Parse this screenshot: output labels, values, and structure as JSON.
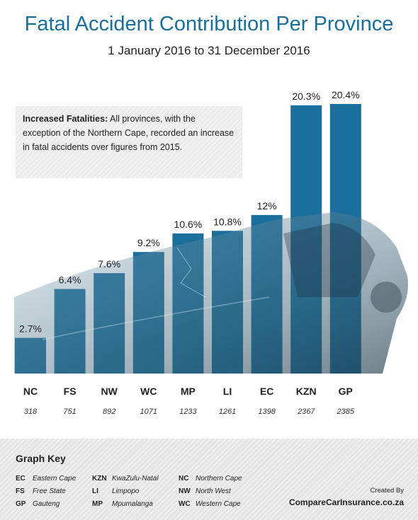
{
  "title": "Fatal Accident Contribution Per Province",
  "subtitle": "1 January 2016 to 31 December 2016",
  "note": {
    "bold": "Increased Fatalities:",
    "text": " All provinces, with the exception of the Northern Cape, recorded an increase in fatal accidents over figures from 2015."
  },
  "chart_data": {
    "type": "bar",
    "categories": [
      "NC",
      "FS",
      "NW",
      "WC",
      "MP",
      "LI",
      "EC",
      "KZN",
      "GP"
    ],
    "values": [
      2.7,
      6.4,
      7.6,
      9.2,
      10.6,
      10.8,
      12,
      20.3,
      20.4
    ],
    "value_labels": [
      "2.7%",
      "6.4%",
      "7.6%",
      "9.2%",
      "10.6%",
      "10.8%",
      "12%",
      "20.3%",
      "20.4%"
    ],
    "counts": [
      "318",
      "751",
      "892",
      "1071",
      "1233",
      "1261",
      "1398",
      "2367",
      "2385"
    ],
    "ylim": [
      0,
      20.4
    ],
    "bar_color": "#1b6f9c",
    "grid": false,
    "legend": "none"
  },
  "key": {
    "title": "Graph Key",
    "columns": [
      [
        {
          "code": "EC",
          "name": "Eastern Cape"
        },
        {
          "code": "FS",
          "name": "Free State"
        },
        {
          "code": "GP",
          "name": "Gauteng"
        }
      ],
      [
        {
          "code": "KZN",
          "name": "KwaZulu-Natal"
        },
        {
          "code": "LI",
          "name": "Limpopo"
        },
        {
          "code": "MP",
          "name": "Mpumalanga"
        }
      ],
      [
        {
          "code": "NC",
          "name": "Northern Cape"
        },
        {
          "code": "NW",
          "name": "North West"
        },
        {
          "code": "WC",
          "name": "Western Cape"
        }
      ]
    ]
  },
  "credit": {
    "created_by": "Created By",
    "site": "CompareCarInsurance.co.za"
  }
}
